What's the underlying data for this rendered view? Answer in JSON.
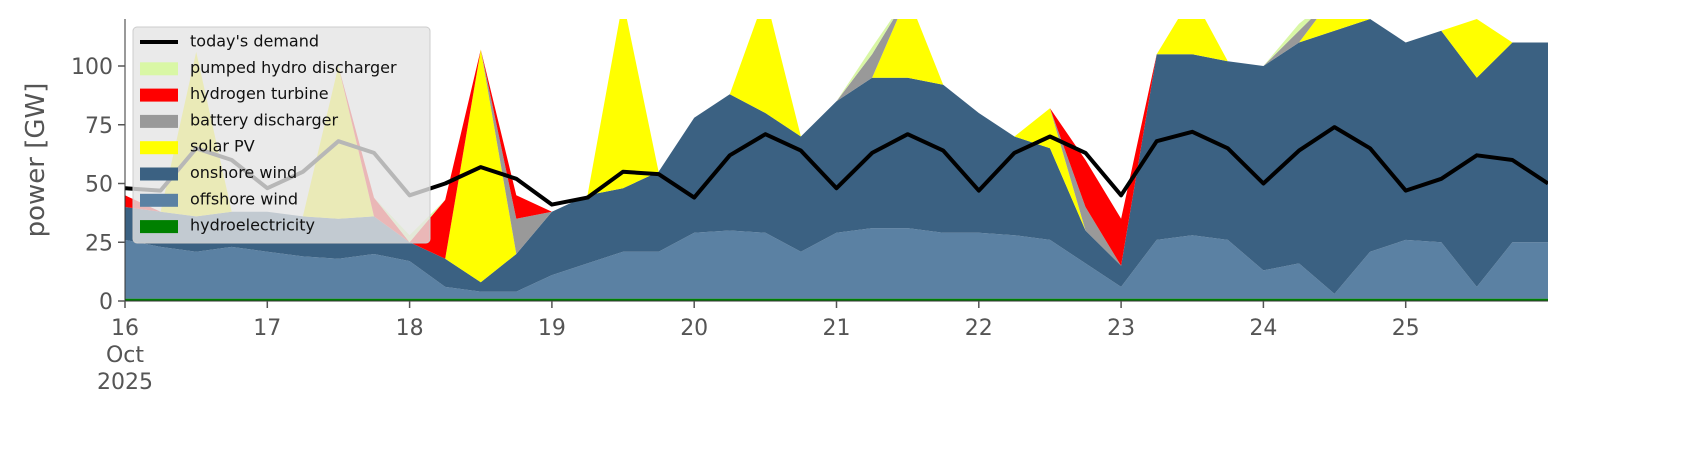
{
  "chart_data": {
    "type": "stacked_area",
    "ylabel": "power [GW]",
    "x": [
      "2025-10-16T00:00",
      "2025-10-16T06:00",
      "2025-10-16T12:00",
      "2025-10-16T18:00",
      "2025-10-17T00:00",
      "2025-10-17T06:00",
      "2025-10-17T12:00",
      "2025-10-17T18:00",
      "2025-10-18T00:00",
      "2025-10-18T06:00",
      "2025-10-18T12:00",
      "2025-10-18T18:00",
      "2025-10-19T00:00",
      "2025-10-19T06:00",
      "2025-10-19T12:00",
      "2025-10-19T18:00",
      "2025-10-20T00:00",
      "2025-10-20T06:00",
      "2025-10-20T12:00",
      "2025-10-20T18:00",
      "2025-10-21T00:00",
      "2025-10-21T06:00",
      "2025-10-21T12:00",
      "2025-10-21T18:00",
      "2025-10-22T00:00",
      "2025-10-22T06:00",
      "2025-10-22T12:00",
      "2025-10-22T18:00",
      "2025-10-23T00:00",
      "2025-10-23T06:00",
      "2025-10-23T12:00",
      "2025-10-23T18:00",
      "2025-10-24T00:00",
      "2025-10-24T06:00",
      "2025-10-24T12:00",
      "2025-10-24T18:00",
      "2025-10-25T00:00",
      "2025-10-25T06:00",
      "2025-10-25T12:00",
      "2025-10-25T18:00",
      "2025-10-26T00:00"
    ],
    "xlim": [
      "2025-10-16T00:00",
      "2025-10-26T00:00"
    ],
    "xticks": [
      {
        "value": "2025-10-16",
        "label": "16\nOct\n2025"
      },
      {
        "value": "2025-10-17",
        "label": "17"
      },
      {
        "value": "2025-10-18",
        "label": "18"
      },
      {
        "value": "2025-10-19",
        "label": "19"
      },
      {
        "value": "2025-10-20",
        "label": "20"
      },
      {
        "value": "2025-10-21",
        "label": "21"
      },
      {
        "value": "2025-10-22",
        "label": "22"
      },
      {
        "value": "2025-10-23",
        "label": "23"
      },
      {
        "value": "2025-10-24",
        "label": "24"
      },
      {
        "value": "2025-10-25",
        "label": "25"
      }
    ],
    "ylim": [
      0,
      120
    ],
    "yticks": [
      0,
      25,
      50,
      75,
      100
    ],
    "legend": "upper left",
    "series": [
      {
        "name": "today's demand",
        "kind": "line",
        "color": "#000000",
        "values": [
          48,
          47,
          65,
          60,
          48,
          55,
          68,
          63,
          45,
          50,
          57,
          52,
          41,
          44,
          55,
          54,
          44,
          62,
          71,
          64,
          48,
          63,
          71,
          64,
          47,
          63,
          70,
          63,
          45,
          68,
          72,
          65,
          50,
          64,
          74,
          65,
          47,
          52,
          62,
          60,
          50
        ]
      },
      {
        "name": "pumped hydro discharger",
        "color": "#d9f7a5",
        "values": [
          0,
          0,
          0,
          0,
          0,
          0,
          0,
          0,
          3,
          0,
          0,
          0,
          0,
          0,
          0,
          0,
          0,
          0,
          0,
          0,
          0,
          3,
          0,
          0,
          0,
          0,
          0,
          0,
          0,
          0,
          0,
          0,
          0,
          3,
          0,
          0,
          0,
          0,
          0,
          0,
          0
        ]
      },
      {
        "name": "hydrogen turbine",
        "color": "#ff0000",
        "values": [
          5,
          0,
          0,
          0,
          0,
          0,
          0,
          8,
          0,
          25,
          0,
          10,
          0,
          0,
          0,
          0,
          0,
          0,
          0,
          0,
          0,
          0,
          0,
          0,
          0,
          0,
          0,
          20,
          20,
          0,
          0,
          0,
          0,
          0,
          0,
          0,
          0,
          0,
          0,
          0,
          0
        ]
      },
      {
        "name": "battery discharger",
        "color": "#999999",
        "values": [
          0,
          0,
          0,
          0,
          0,
          0,
          0,
          0,
          0,
          0,
          0,
          15,
          0,
          0,
          0,
          0,
          0,
          0,
          0,
          0,
          0,
          10,
          0,
          0,
          0,
          0,
          0,
          10,
          0,
          0,
          0,
          0,
          0,
          5,
          0,
          0,
          0,
          0,
          0,
          0,
          0
        ]
      },
      {
        "name": "solar PV",
        "color": "#ffff00",
        "values": [
          0,
          0,
          70,
          0,
          0,
          0,
          65,
          0,
          0,
          0,
          99,
          0,
          0,
          0,
          80,
          0,
          0,
          0,
          50,
          0,
          0,
          0,
          35,
          0,
          0,
          0,
          17,
          0,
          0,
          0,
          25,
          0,
          0,
          0,
          15,
          0,
          0,
          0,
          25,
          0,
          0
        ]
      },
      {
        "name": "onshore wind",
        "color": "#3b6182",
        "values": [
          14,
          15,
          15,
          15,
          17,
          17,
          17,
          16,
          8,
          12,
          4,
          16,
          27,
          29,
          27,
          34,
          49,
          58,
          51,
          49,
          56,
          64,
          64,
          63,
          51,
          42,
          39,
          14,
          9,
          79,
          77,
          76,
          87,
          94,
          112,
          99,
          84,
          90,
          89,
          85,
          85
        ]
      },
      {
        "name": "offshore wind",
        "color": "#5b81a3",
        "values": [
          25,
          22,
          20,
          22,
          20,
          18,
          17,
          19,
          16,
          5,
          3,
          3,
          10,
          15,
          20,
          20,
          28,
          29,
          28,
          20,
          28,
          30,
          30,
          28,
          28,
          27,
          25,
          15,
          5,
          25,
          27,
          25,
          12,
          15,
          2,
          20,
          25,
          24,
          5,
          24,
          24
        ]
      },
      {
        "name": "hydroelectricity",
        "color": "#008000",
        "values": [
          1,
          1,
          1,
          1,
          1,
          1,
          1,
          1,
          1,
          1,
          1,
          1,
          1,
          1,
          1,
          1,
          1,
          1,
          1,
          1,
          1,
          1,
          1,
          1,
          1,
          1,
          1,
          1,
          1,
          1,
          1,
          1,
          1,
          1,
          1,
          1,
          1,
          1,
          1,
          1,
          1
        ]
      }
    ]
  }
}
